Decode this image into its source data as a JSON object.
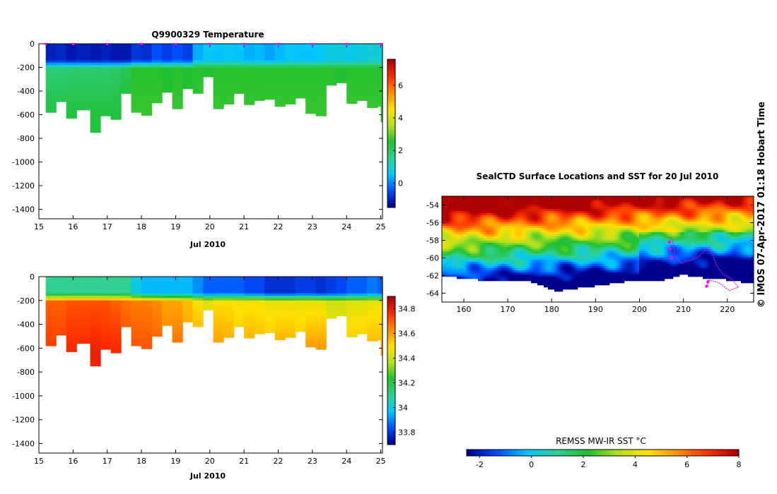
{
  "chart_data": [
    {
      "type": "heatmap",
      "id": "temperature-section",
      "title": "Q9900329  Temperature",
      "xlabel": "Jul 2010",
      "xlim": [
        15,
        25.05
      ],
      "ylim": [
        -1480,
        0
      ],
      "x_ticks": [
        15,
        16,
        17,
        18,
        19,
        20,
        21,
        22,
        23,
        24,
        25
      ],
      "y_ticks": [
        0,
        -200,
        -400,
        -600,
        -800,
        -1000,
        -1200,
        -1400
      ],
      "colorbar": {
        "range": [
          -1.5,
          7.6
        ],
        "ticks": [
          0,
          2,
          4,
          6
        ],
        "colors": [
          "#00008f",
          "#0050ff",
          "#00c8ff",
          "#30d090",
          "#20c030",
          "#b0e020",
          "#ffe000",
          "#ff9000",
          "#ff3000",
          "#b00000"
        ]
      },
      "profiles": [
        {
          "day": 15.2,
          "max_depth": 580,
          "surface": -1.1,
          "mid": 1.8,
          "deep": 2.4
        },
        {
          "day": 15.5,
          "max_depth": 490,
          "surface": -1.0,
          "mid": 1.8,
          "deep": 2.4
        },
        {
          "day": 15.8,
          "max_depth": 630,
          "surface": -1.2,
          "mid": 1.9,
          "deep": 2.4
        },
        {
          "day": 16.1,
          "max_depth": 560,
          "surface": -1.1,
          "mid": 1.9,
          "deep": 2.4
        },
        {
          "day": 16.5,
          "max_depth": 750,
          "surface": -1.2,
          "mid": 1.9,
          "deep": 2.4
        },
        {
          "day": 16.8,
          "max_depth": 610,
          "surface": -1.1,
          "mid": 1.9,
          "deep": 2.4
        },
        {
          "day": 17.1,
          "max_depth": 640,
          "surface": -1.2,
          "mid": 2.0,
          "deep": 2.4
        },
        {
          "day": 17.4,
          "max_depth": 420,
          "surface": -1.2,
          "mid": 2.2,
          "deep": 2.5
        },
        {
          "day": 17.7,
          "max_depth": 580,
          "surface": -0.8,
          "mid": 2.6,
          "deep": 2.7
        },
        {
          "day": 18.0,
          "max_depth": 605,
          "surface": -0.9,
          "mid": 2.6,
          "deep": 2.7
        },
        {
          "day": 18.3,
          "max_depth": 500,
          "surface": -0.5,
          "mid": 2.6,
          "deep": 2.7
        },
        {
          "day": 18.6,
          "max_depth": 410,
          "surface": -0.7,
          "mid": 2.5,
          "deep": 2.6
        },
        {
          "day": 18.9,
          "max_depth": 550,
          "surface": -0.5,
          "mid": 2.6,
          "deep": 2.7
        },
        {
          "day": 19.2,
          "max_depth": 380,
          "surface": -0.7,
          "mid": 2.5,
          "deep": 2.6
        },
        {
          "day": 19.5,
          "max_depth": 420,
          "surface": 0.3,
          "mid": 2.6,
          "deep": 2.7
        },
        {
          "day": 19.8,
          "max_depth": 280,
          "surface": 0.6,
          "mid": 2.5,
          "deep": 2.6
        },
        {
          "day": 20.1,
          "max_depth": 550,
          "surface": 0.5,
          "mid": 2.6,
          "deep": 2.7
        },
        {
          "day": 20.4,
          "max_depth": 510,
          "surface": 0.6,
          "mid": 2.6,
          "deep": 2.7
        },
        {
          "day": 20.7,
          "max_depth": 420,
          "surface": 0.5,
          "mid": 2.6,
          "deep": 2.7
        },
        {
          "day": 21.0,
          "max_depth": 515,
          "surface": 0.3,
          "mid": 2.6,
          "deep": 2.7
        },
        {
          "day": 21.3,
          "max_depth": 480,
          "surface": 0.4,
          "mid": 2.6,
          "deep": 2.7
        },
        {
          "day": 21.6,
          "max_depth": 470,
          "surface": 0.2,
          "mid": 2.6,
          "deep": 2.7
        },
        {
          "day": 21.9,
          "max_depth": 530,
          "surface": 0.4,
          "mid": 2.6,
          "deep": 2.7
        },
        {
          "day": 22.2,
          "max_depth": 510,
          "surface": 0.6,
          "mid": 2.6,
          "deep": 2.7
        },
        {
          "day": 22.5,
          "max_depth": 460,
          "surface": 0.5,
          "mid": 2.6,
          "deep": 2.7
        },
        {
          "day": 22.8,
          "max_depth": 590,
          "surface": 0.5,
          "mid": 2.6,
          "deep": 2.7
        },
        {
          "day": 23.1,
          "max_depth": 610,
          "surface": 0.6,
          "mid": 2.6,
          "deep": 2.7
        },
        {
          "day": 23.4,
          "max_depth": 350,
          "surface": 0.8,
          "mid": 2.6,
          "deep": 2.7
        },
        {
          "day": 23.7,
          "max_depth": 330,
          "surface": 0.8,
          "mid": 2.5,
          "deep": 2.6
        },
        {
          "day": 24.0,
          "max_depth": 505,
          "surface": 0.7,
          "mid": 2.6,
          "deep": 2.7
        },
        {
          "day": 24.3,
          "max_depth": 480,
          "surface": 0.8,
          "mid": 2.6,
          "deep": 2.7
        },
        {
          "day": 24.6,
          "max_depth": 540,
          "surface": 0.9,
          "mid": 2.6,
          "deep": 2.7
        },
        {
          "day": 24.9,
          "max_depth": 530,
          "surface": 0.8,
          "mid": 2.6,
          "deep": 2.7
        },
        {
          "day": 25.0,
          "max_depth": 660,
          "surface": 0.7,
          "mid": 2.6,
          "deep": 2.7
        }
      ],
      "markers": [
        15.2,
        16.0,
        17.0,
        18.0,
        19.0,
        20.0,
        21.0,
        22.0,
        23.0,
        24.0,
        25.0
      ]
    },
    {
      "type": "heatmap",
      "id": "salinity-section",
      "title": "",
      "xlabel": "Jul 2010",
      "xlim": [
        15,
        25.05
      ],
      "ylim": [
        -1480,
        0
      ],
      "x_ticks": [
        15,
        16,
        17,
        18,
        19,
        20,
        21,
        22,
        23,
        24,
        25
      ],
      "y_ticks": [
        0,
        -200,
        -400,
        -600,
        -800,
        -1000,
        -1200,
        -1400
      ],
      "colorbar": {
        "range": [
          33.7,
          34.9
        ],
        "ticks": [
          33.8,
          34,
          34.2,
          34.4,
          34.6,
          34.8
        ],
        "colors": [
          "#00008f",
          "#0050ff",
          "#00c8ff",
          "#30d090",
          "#20c030",
          "#b0e020",
          "#ffe000",
          "#ff9000",
          "#ff3000",
          "#b00000"
        ]
      },
      "profiles": [
        {
          "day": 15.2,
          "max_depth": 580,
          "surface": 34.1,
          "mid": 34.7,
          "deep": 34.75
        },
        {
          "day": 15.5,
          "max_depth": 490,
          "surface": 34.1,
          "mid": 34.7,
          "deep": 34.75
        },
        {
          "day": 15.8,
          "max_depth": 630,
          "surface": 34.1,
          "mid": 34.72,
          "deep": 34.78
        },
        {
          "day": 16.1,
          "max_depth": 560,
          "surface": 34.1,
          "mid": 34.72,
          "deep": 34.78
        },
        {
          "day": 16.5,
          "max_depth": 750,
          "surface": 34.1,
          "mid": 34.72,
          "deep": 34.8
        },
        {
          "day": 16.8,
          "max_depth": 610,
          "surface": 34.1,
          "mid": 34.72,
          "deep": 34.78
        },
        {
          "day": 17.1,
          "max_depth": 640,
          "surface": 34.1,
          "mid": 34.7,
          "deep": 34.78
        },
        {
          "day": 17.4,
          "max_depth": 420,
          "surface": 34.1,
          "mid": 34.68,
          "deep": 34.72
        },
        {
          "day": 17.7,
          "max_depth": 580,
          "surface": 34.0,
          "mid": 34.66,
          "deep": 34.72
        },
        {
          "day": 18.0,
          "max_depth": 605,
          "surface": 33.95,
          "mid": 34.66,
          "deep": 34.72
        },
        {
          "day": 18.3,
          "max_depth": 500,
          "surface": 33.95,
          "mid": 34.64,
          "deep": 34.7
        },
        {
          "day": 18.6,
          "max_depth": 410,
          "surface": 33.95,
          "mid": 34.6,
          "deep": 34.66
        },
        {
          "day": 18.9,
          "max_depth": 550,
          "surface": 33.95,
          "mid": 34.6,
          "deep": 34.68
        },
        {
          "day": 19.2,
          "max_depth": 380,
          "surface": 33.95,
          "mid": 34.56,
          "deep": 34.62
        },
        {
          "day": 19.5,
          "max_depth": 420,
          "surface": 33.9,
          "mid": 34.5,
          "deep": 34.6
        },
        {
          "day": 19.8,
          "max_depth": 280,
          "surface": 33.85,
          "mid": 34.45,
          "deep": 34.5
        },
        {
          "day": 20.1,
          "max_depth": 550,
          "surface": 33.85,
          "mid": 34.5,
          "deep": 34.62
        },
        {
          "day": 20.4,
          "max_depth": 510,
          "surface": 33.85,
          "mid": 34.5,
          "deep": 34.6
        },
        {
          "day": 20.7,
          "max_depth": 420,
          "surface": 33.85,
          "mid": 34.48,
          "deep": 34.56
        },
        {
          "day": 21.0,
          "max_depth": 515,
          "surface": 33.82,
          "mid": 34.48,
          "deep": 34.6
        },
        {
          "day": 21.3,
          "max_depth": 480,
          "surface": 33.82,
          "mid": 34.48,
          "deep": 34.58
        },
        {
          "day": 21.6,
          "max_depth": 470,
          "surface": 33.78,
          "mid": 34.46,
          "deep": 34.56
        },
        {
          "day": 21.9,
          "max_depth": 530,
          "surface": 33.78,
          "mid": 34.46,
          "deep": 34.6
        },
        {
          "day": 22.2,
          "max_depth": 510,
          "surface": 33.78,
          "mid": 34.46,
          "deep": 34.6
        },
        {
          "day": 22.5,
          "max_depth": 460,
          "surface": 33.8,
          "mid": 34.46,
          "deep": 34.56
        },
        {
          "day": 22.8,
          "max_depth": 590,
          "surface": 33.8,
          "mid": 34.46,
          "deep": 34.62
        },
        {
          "day": 23.1,
          "max_depth": 610,
          "surface": 33.78,
          "mid": 34.46,
          "deep": 34.62
        },
        {
          "day": 23.4,
          "max_depth": 350,
          "surface": 33.8,
          "mid": 34.42,
          "deep": 34.5
        },
        {
          "day": 23.7,
          "max_depth": 330,
          "surface": 33.82,
          "mid": 34.42,
          "deep": 34.48
        },
        {
          "day": 24.0,
          "max_depth": 505,
          "surface": 33.85,
          "mid": 34.44,
          "deep": 34.56
        },
        {
          "day": 24.3,
          "max_depth": 480,
          "surface": 33.85,
          "mid": 34.44,
          "deep": 34.56
        },
        {
          "day": 24.6,
          "max_depth": 540,
          "surface": 33.88,
          "mid": 34.46,
          "deep": 34.58
        },
        {
          "day": 24.9,
          "max_depth": 530,
          "surface": 33.85,
          "mid": 34.46,
          "deep": 34.58
        },
        {
          "day": 25.0,
          "max_depth": 660,
          "surface": 33.85,
          "mid": 34.46,
          "deep": 34.6
        }
      ]
    },
    {
      "type": "heatmap",
      "id": "sst-map",
      "title": "SealCTD Surface Locations and SST for 20 Jul 2010",
      "xlim": [
        155,
        226
      ],
      "ylim": [
        -65,
        -53
      ],
      "x_ticks": [
        160,
        170,
        180,
        190,
        200,
        210,
        220
      ],
      "y_ticks": [
        -54,
        -56,
        -58,
        -60,
        -62,
        -64
      ],
      "colorbar_label": "REMSS MW-IR SST °C",
      "colorbar": {
        "range": [
          -2.5,
          8
        ],
        "ticks": [
          -2,
          0,
          2,
          4,
          6,
          8
        ],
        "colors": [
          "#00008f",
          "#0050ff",
          "#00c8ff",
          "#30d090",
          "#20c030",
          "#b0e020",
          "#ffe000",
          "#ff9000",
          "#ff3000",
          "#b00000"
        ]
      },
      "ice_edge": [
        {
          "lon": 155,
          "lat": -62.1
        },
        {
          "lon": 160,
          "lat": -62.3
        },
        {
          "lon": 165,
          "lat": -62.6
        },
        {
          "lon": 170,
          "lat": -62.6
        },
        {
          "lon": 175,
          "lat": -62.7
        },
        {
          "lon": 178,
          "lat": -63.2
        },
        {
          "lon": 181,
          "lat": -63.8
        },
        {
          "lon": 185,
          "lat": -63.5
        },
        {
          "lon": 190,
          "lat": -63.2
        },
        {
          "lon": 195,
          "lat": -62.8
        },
        {
          "lon": 200,
          "lat": -62.5
        },
        {
          "lon": 205,
          "lat": -62.6
        },
        {
          "lon": 210,
          "lat": -61.9
        },
        {
          "lon": 215,
          "lat": -62.3
        },
        {
          "lon": 220,
          "lat": -62.5
        },
        {
          "lon": 226,
          "lat": -62.9
        }
      ],
      "track": [
        {
          "lon": 207.2,
          "lat": -57.6
        },
        {
          "lon": 207.8,
          "lat": -58.6
        },
        {
          "lon": 208.0,
          "lat": -59.8
        },
        {
          "lon": 209.5,
          "lat": -60.6
        },
        {
          "lon": 213.0,
          "lat": -60.0
        },
        {
          "lon": 216.0,
          "lat": -58.7
        },
        {
          "lon": 217.5,
          "lat": -60.8
        },
        {
          "lon": 219.0,
          "lat": -61.8
        },
        {
          "lon": 221.0,
          "lat": -62.4
        },
        {
          "lon": 222.5,
          "lat": -63.3
        },
        {
          "lon": 220.5,
          "lat": -63.7
        },
        {
          "lon": 218.0,
          "lat": -62.8
        },
        {
          "lon": 215.8,
          "lat": -62.5
        },
        {
          "lon": 215.2,
          "lat": -63.4
        }
      ],
      "recent_points": [
        {
          "lon": 206.8,
          "lat": -58.2
        },
        {
          "lon": 207.0,
          "lat": -59.0
        },
        {
          "lon": 207.3,
          "lat": -60.0
        },
        {
          "lon": 215.3,
          "lat": -63.2
        },
        {
          "lon": 215.6,
          "lat": -62.7
        }
      ],
      "colors": {
        "track": "#ff00ff",
        "land": "#ffffff"
      }
    }
  ],
  "credit": "© IMOS 07-Apr-2017 01:18 Hobart Time"
}
